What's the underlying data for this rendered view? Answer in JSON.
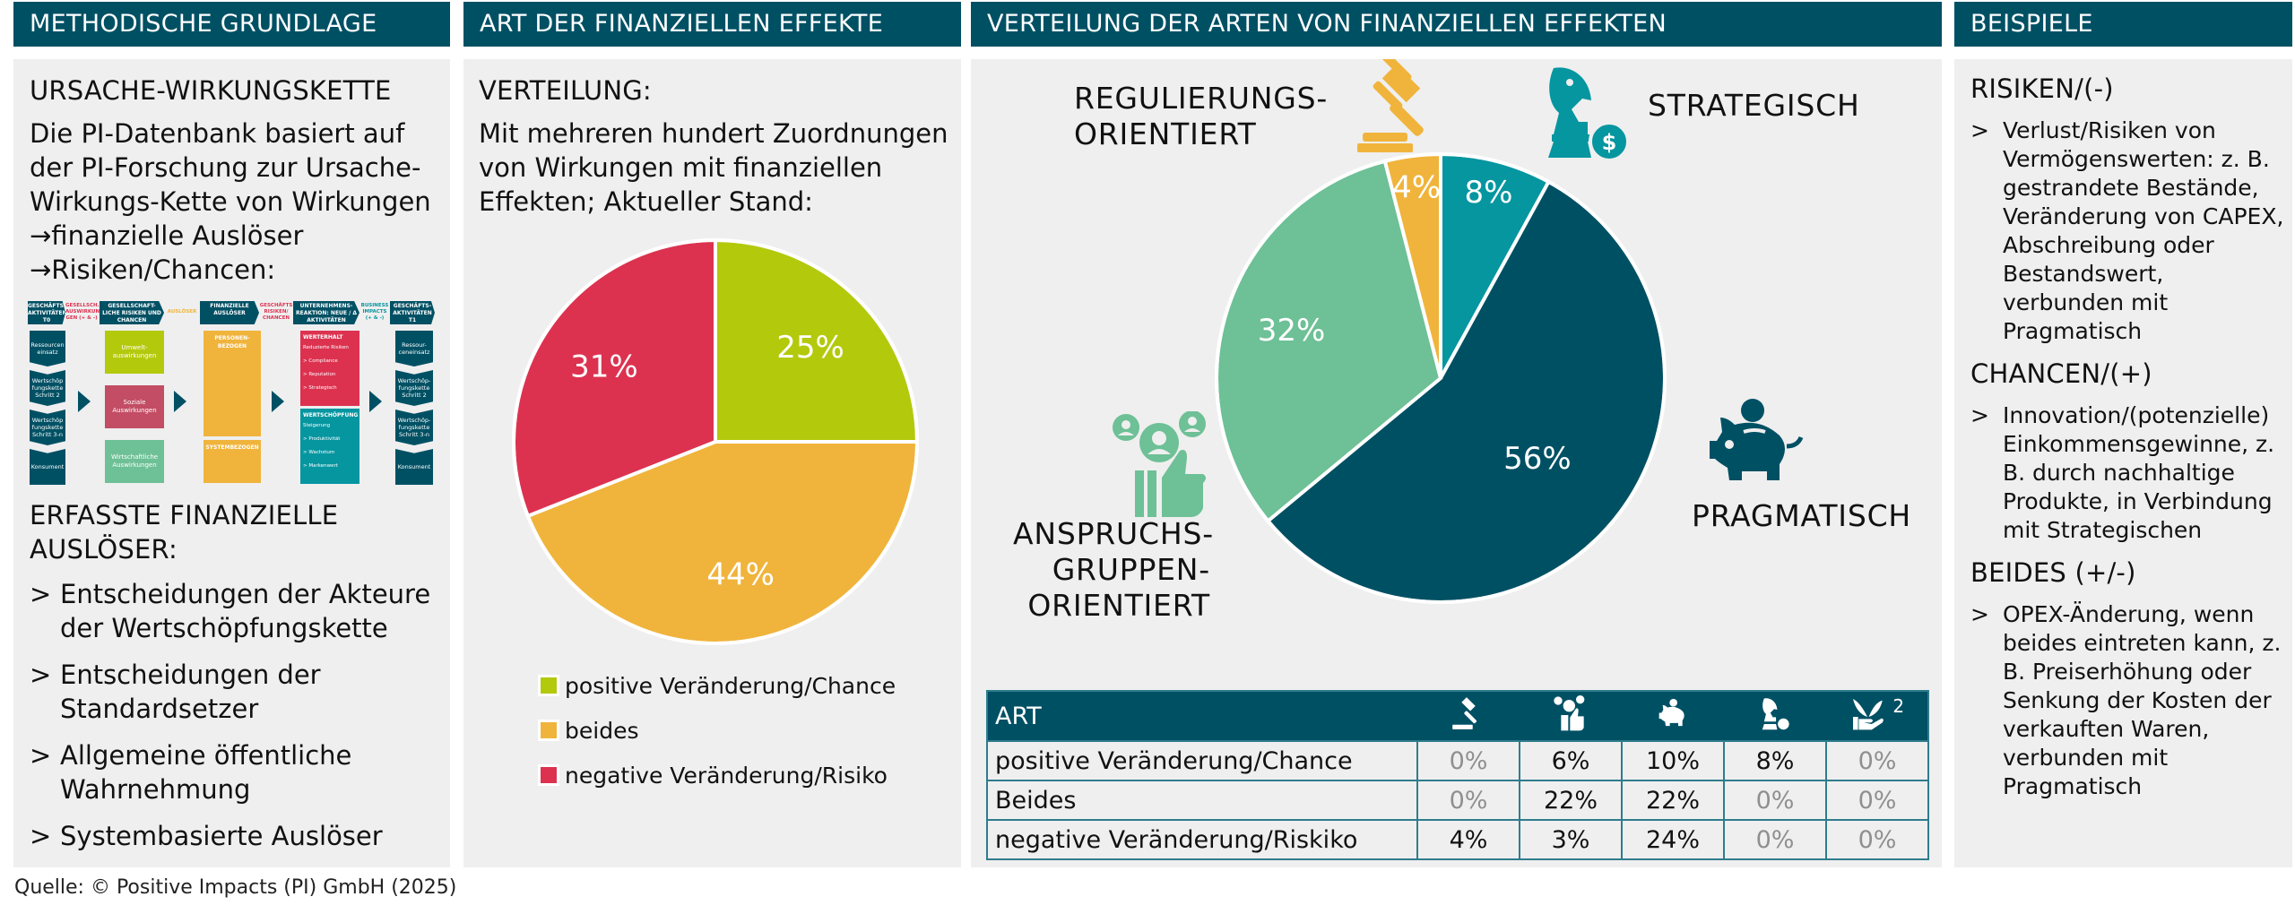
{
  "columns": {
    "methodik": {
      "header": "METHODISCHE GRUNDLAGE",
      "section1_title": "URSACHE-WIRKUNGSKETTE",
      "section1_text": "Die PI-Datenbank basiert auf der PI-Forschung zur Ursache-Wirkungs-Kette von Wirkungen",
      "section1_line2": "→finanzielle Auslöser",
      "section1_line3": "→Risiken/Chancen:",
      "diagram": {
        "chevrons": [
          "GESCHÄFTS-AKTIVITÄTEN T0",
          "GESELLSCHAFT-LICHE RISIKEN UND CHANCEN",
          "FINANZIELLE AUSLÖSER",
          "UNTERNEHMENS-REAKTION: NEUE / Δ AKTIVITÄTEN",
          "GESCHÄFTS-AKTIVITÄTEN T1"
        ],
        "connectors": [
          "GESELLSCH. AUSWIRKUN-GEN (+ & -)",
          "AUSLÖSER",
          "GESCHÄFTS RISIKEN/ CHANCEN",
          "BUSINESS IMPACTS (+ & -)"
        ],
        "left_stack": [
          "Ressourcen einsatz",
          "Wertschöp fungskette Schritt 2",
          "Wertschöp fungskette Schritt 3-n",
          "Konsument"
        ],
        "right_stack": [
          "Ressour-ceneinsatz",
          "Wertschöp-fungskette Schritt 2",
          "Wertschöp-fungskette Schritt 3-n",
          "Konsument"
        ],
        "impact_boxes": [
          "Umwelt-auswirkungen",
          "Soziale Auswirkungen",
          "Wirtschaftliche Auswirkungen"
        ],
        "trigger_boxes": [
          "PERSONEN-BEZOGEN",
          "SYSTEMBEZOGEN"
        ],
        "werterhalt": {
          "title": "WERTERHALT",
          "subtitle": "Reduzierte Risiken",
          "items": [
            "> Compliance",
            "> Reputation",
            "> Strategisch"
          ]
        },
        "wertschoepfung": {
          "title": "WERTSCHÖPFUNG",
          "subtitle": "Steigerung",
          "items": [
            "> Produktivität",
            "> Wachstum",
            "> Markenwert"
          ]
        }
      },
      "section2_title": "ERFASSTE FINANZIELLE AUSLÖSER:",
      "triggers": [
        "Entscheidungen der Akteure der Wertschöpfungskette",
        "Entscheidungen der Standardsetzer",
        "Allgemeine öffentliche Wahrnehmung",
        "Systembasierte Auslöser"
      ],
      "bullet_glyph": ">"
    },
    "art": {
      "header": "ART DER FINANZIELLEN EFFEKTE",
      "title": "VERTEILUNG:",
      "text": "Mit mehreren hundert Zuordnungen von Wirkungen mit finanziellen Effekten; Aktueller Stand:"
    },
    "verteilung": {
      "header": "VERTEILUNG DER ARTEN VON FINANZIELLEN EFFEKTEN",
      "categories": {
        "regulierung": "REGULIERUNGS-\nORIENTIERT",
        "strategisch": "STRATEGISCH",
        "anspruch": "ANSPRUCHS-\nGRUPPEN-\nORIENTIERT",
        "pragmatisch": "PRAGMATISCH"
      },
      "table": {
        "header_label": "ART",
        "icons": [
          "gavel-icon",
          "stakeholder-thumbs-up-icon",
          "piggy-bank-icon",
          "chess-knight-dollar-icon",
          "hand-plant-icon"
        ],
        "icon_superscript": "2",
        "rows": [
          {
            "label": "positive Veränderung/Chance",
            "values": [
              "0%",
              "6%",
              "10%",
              "8%",
              "0%"
            ]
          },
          {
            "label": "Beides",
            "values": [
              "0%",
              "22%",
              "22%",
              "0%",
              "0%"
            ]
          },
          {
            "label": "negative Veränderung/Riskiko",
            "values": [
              "4%",
              "3%",
              "24%",
              "0%",
              "0%"
            ]
          }
        ]
      }
    },
    "beispiele": {
      "header": "BEISPIELE",
      "sections": [
        {
          "title": "RISIKEN/(-)",
          "text": "Verlust/Risiken von Vermögenswerten: z. B. gestrandete Bestände, Veränderung von CAPEX, Abschreibung oder Bestandswert, verbunden mit Pragmatisch"
        },
        {
          "title": "CHANCEN/(+)",
          "text": "Innovation/(potenzielle) Einkommensgewinne, z. B. durch nachhaltige Produkte, in Verbindung mit Strategischen"
        },
        {
          "title": "BEIDES (+/-)",
          "text": "OPEX-Änderung, wenn beides eintreten kann, z. B. Preiserhöhung oder Senkung der Kosten der verkauften Waren, verbunden mit Pragmatisch"
        }
      ]
    }
  },
  "footer": "Quelle: © Positive Impacts (PI) GmbH (2025)",
  "colors": {
    "header_bg": "#005064",
    "panel_bg": "#efefef",
    "lime": "#b3c90c",
    "yellow": "#f0b43c",
    "red": "#dc3250",
    "teal": "#0596a0",
    "dark_teal": "#005064",
    "green": "#6ec096"
  },
  "chart_data": [
    {
      "type": "pie",
      "title": "Art der finanziellen Effekte",
      "categories": [
        "positive Veränderung/Chance",
        "beides",
        "negative Veränderung/Risiko"
      ],
      "values": [
        25,
        44,
        31
      ],
      "labels": [
        "25%",
        "44%",
        "31%"
      ],
      "colors": [
        "#b3c90c",
        "#f0b43c",
        "#dc3250"
      ],
      "legend": [
        "positive Veränderung/Chance",
        "beides",
        "negative Veränderung/Risiko"
      ],
      "legend_position": "bottom"
    },
    {
      "type": "pie",
      "title": "Verteilung der Arten von finanziellen Effekten",
      "categories": [
        "Strategisch",
        "Pragmatisch",
        "Anspruchsgruppen-orientiert",
        "Regulierungsorientiert"
      ],
      "values": [
        8,
        56,
        32,
        4
      ],
      "labels": [
        "8%",
        "56%",
        "32%",
        "4%"
      ],
      "colors": [
        "#0596a0",
        "#005064",
        "#6ec096",
        "#f0b43c"
      ]
    }
  ]
}
